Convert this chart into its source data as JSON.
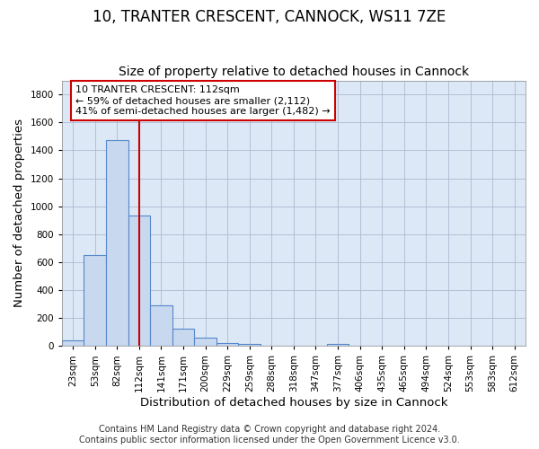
{
  "title": "10, TRANTER CRESCENT, CANNOCK, WS11 7ZE",
  "subtitle": "Size of property relative to detached houses in Cannock",
  "xlabel": "Distribution of detached houses by size in Cannock",
  "ylabel": "Number of detached properties",
  "categories": [
    "23sqm",
    "53sqm",
    "82sqm",
    "112sqm",
    "141sqm",
    "171sqm",
    "200sqm",
    "229sqm",
    "259sqm",
    "288sqm",
    "318sqm",
    "347sqm",
    "377sqm",
    "406sqm",
    "435sqm",
    "465sqm",
    "494sqm",
    "524sqm",
    "553sqm",
    "583sqm",
    "612sqm"
  ],
  "values": [
    40,
    650,
    1470,
    935,
    290,
    125,
    62,
    22,
    14,
    0,
    0,
    0,
    14,
    0,
    0,
    0,
    0,
    0,
    0,
    0,
    0
  ],
  "bar_color": "#c8d8ee",
  "bar_edge_color": "#5588cc",
  "vline_x": 3,
  "vline_color": "#cc0000",
  "ylim": [
    0,
    1900
  ],
  "yticks": [
    0,
    200,
    400,
    600,
    800,
    1000,
    1200,
    1400,
    1600,
    1800
  ],
  "annotation_text": "10 TRANTER CRESCENT: 112sqm\n← 59% of detached houses are smaller (2,112)\n41% of semi-detached houses are larger (1,482) →",
  "annotation_box_color": "#ffffff",
  "annotation_box_edge": "#cc0000",
  "footer_line1": "Contains HM Land Registry data © Crown copyright and database right 2024.",
  "footer_line2": "Contains public sector information licensed under the Open Government Licence v3.0.",
  "plot_bg_color": "#dce8f5",
  "background_color": "#ffffff",
  "grid_color": "#b0b8d0",
  "title_fontsize": 12,
  "subtitle_fontsize": 10,
  "axis_label_fontsize": 9.5,
  "tick_fontsize": 7.5,
  "annotation_fontsize": 8,
  "footer_fontsize": 7
}
